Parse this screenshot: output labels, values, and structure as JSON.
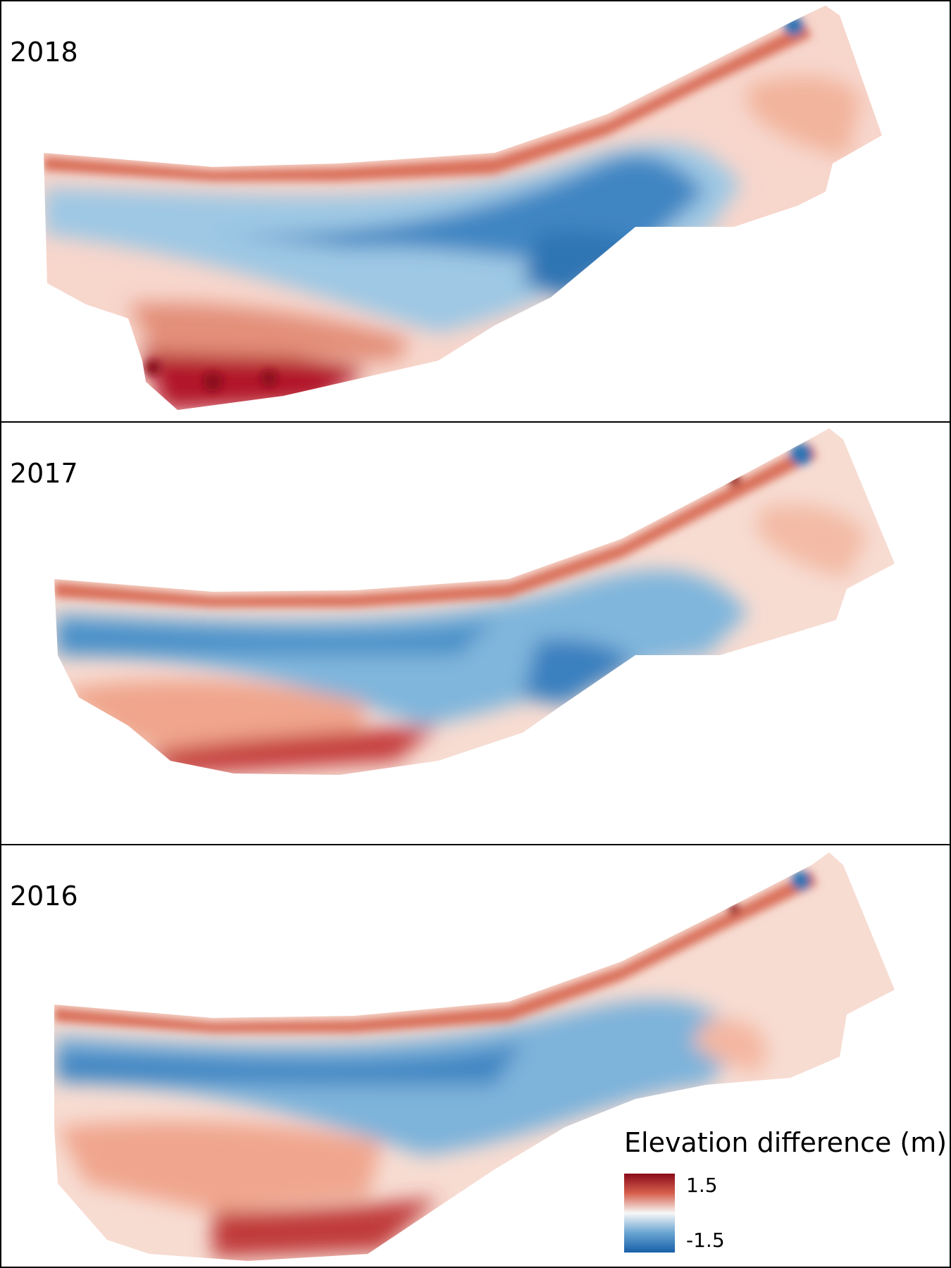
{
  "panels": [
    {
      "year": "2018"
    },
    {
      "year": "2017"
    },
    {
      "year": "2016"
    }
  ],
  "legend": {
    "title": "Elevation difference (m)",
    "max_label": "1.5",
    "min_label": "-1.5",
    "max_value": 1.5,
    "min_value": -1.5,
    "colors": {
      "high": "#8b0a1a",
      "mid": "#f7f7f7",
      "low": "#175fa8"
    }
  }
}
